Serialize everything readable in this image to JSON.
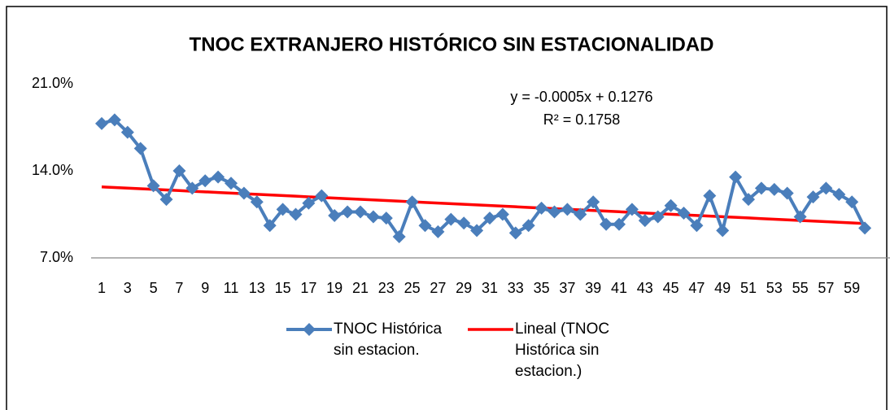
{
  "chart_data": {
    "type": "line",
    "title": "TNOC EXTRANJERO HISTÓRICO SIN ESTACIONALIDAD",
    "annotations": [
      "y = -0.0005x + 0.1276",
      "R² = 0.1758"
    ],
    "categories": [
      1,
      null,
      3,
      null,
      5,
      null,
      7,
      null,
      9,
      null,
      11,
      null,
      13,
      null,
      15,
      null,
      17,
      null,
      19,
      null,
      21,
      null,
      23,
      null,
      25,
      null,
      27,
      null,
      29,
      null,
      31,
      null,
      33,
      null,
      35,
      null,
      37,
      null,
      39,
      null,
      41,
      null,
      43,
      null,
      45,
      null,
      47,
      null,
      49,
      null,
      51,
      null,
      53,
      null,
      55,
      null,
      57,
      null,
      59,
      null
    ],
    "series": [
      {
        "name": "TNOC Histórica sin estacion.",
        "color": "#4a7ebb",
        "marker": "diamond",
        "values": [
          17.8,
          18.1,
          17.1,
          15.8,
          12.8,
          11.7,
          14.0,
          12.6,
          13.2,
          13.5,
          13.0,
          12.2,
          11.5,
          9.6,
          10.9,
          10.5,
          11.4,
          12.0,
          10.4,
          10.7,
          10.7,
          10.3,
          10.2,
          8.7,
          11.5,
          9.6,
          9.1,
          10.1,
          9.8,
          9.2,
          10.2,
          10.5,
          9.0,
          9.6,
          11.0,
          10.7,
          10.9,
          10.5,
          11.5,
          9.7,
          9.7,
          10.9,
          10.0,
          10.3,
          11.2,
          10.6,
          9.6,
          12.0,
          9.2,
          13.5,
          11.7,
          12.6,
          12.5,
          12.2,
          10.3,
          11.9,
          12.6,
          12.1,
          11.5,
          9.4
        ]
      },
      {
        "name": "Lineal (TNOC Histórica sin estacion.)",
        "color": "#ff0000",
        "marker": "none",
        "values": [
          12.71,
          12.66,
          12.61,
          12.56,
          12.51,
          12.46,
          12.41,
          12.36,
          12.31,
          12.26,
          12.21,
          12.16,
          12.11,
          12.06,
          12.01,
          11.96,
          11.91,
          11.86,
          11.81,
          11.76,
          11.71,
          11.66,
          11.61,
          11.56,
          11.51,
          11.46,
          11.41,
          11.36,
          11.31,
          11.26,
          11.21,
          11.16,
          11.11,
          11.06,
          11.01,
          10.96,
          10.91,
          10.86,
          10.81,
          10.76,
          10.71,
          10.66,
          10.61,
          10.56,
          10.51,
          10.46,
          10.41,
          10.36,
          10.31,
          10.26,
          10.21,
          10.16,
          10.11,
          10.06,
          10.01,
          9.96,
          9.91,
          9.86,
          9.81,
          9.76
        ]
      }
    ],
    "ylim": [
      7,
      21
    ],
    "yticks": [
      {
        "value": 7,
        "label": "7.0%"
      },
      {
        "value": 14,
        "label": "14.0%"
      },
      {
        "value": 21,
        "label": "21.0%"
      }
    ],
    "grid": false,
    "legend": "bottom"
  }
}
